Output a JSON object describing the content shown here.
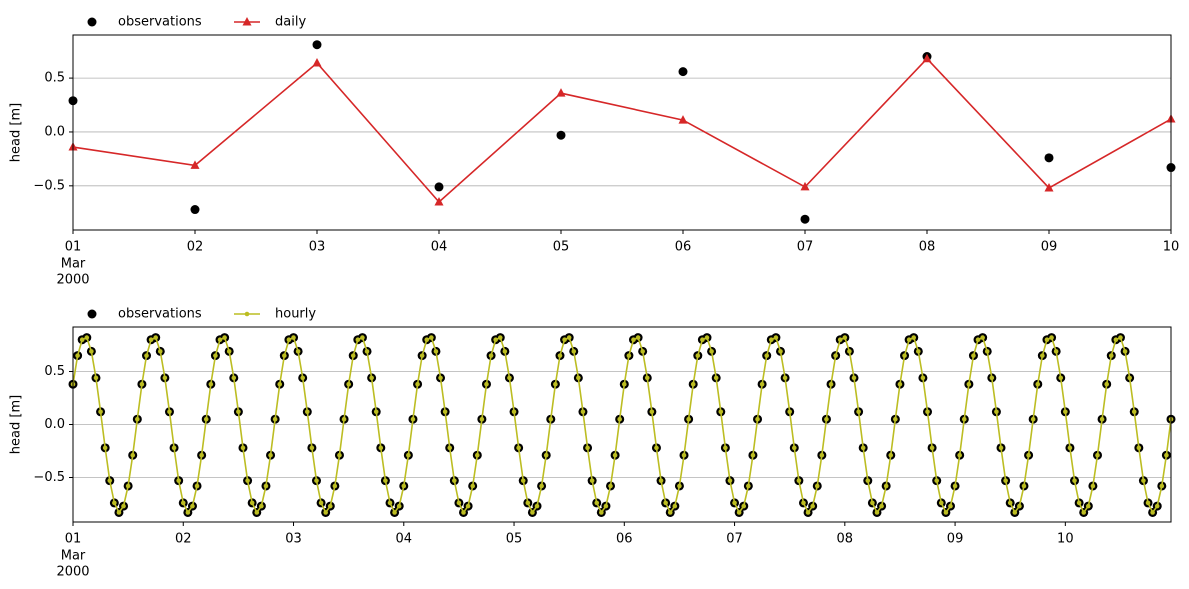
{
  "chart_data": [
    {
      "type": "line",
      "ylabel": "head [m]",
      "legend": "upper-left-outside",
      "grid": "y",
      "xlim": [
        0,
        9
      ],
      "xticks": [
        {
          "value": 0,
          "label": "01"
        },
        {
          "value": 1,
          "label": "02"
        },
        {
          "value": 2,
          "label": "03"
        },
        {
          "value": 3,
          "label": "04"
        },
        {
          "value": 4,
          "label": "05"
        },
        {
          "value": 5,
          "label": "06"
        },
        {
          "value": 6,
          "label": "07"
        },
        {
          "value": 7,
          "label": "08"
        },
        {
          "value": 8,
          "label": "09"
        },
        {
          "value": 9,
          "label": "10"
        }
      ],
      "xtick_sublabels": [
        "Mar",
        "2000"
      ],
      "ylim": [
        -0.91,
        0.9
      ],
      "yticks": [
        {
          "value": -0.5,
          "label": "−0.5"
        },
        {
          "value": 0,
          "label": "0.0"
        },
        {
          "value": 0.5,
          "label": "0.5"
        }
      ],
      "series": [
        {
          "name": "observations",
          "color": "#000000",
          "marker": "circle",
          "line": false,
          "values": [
            0.29,
            -0.72,
            0.81,
            -0.51,
            -0.03,
            0.56,
            -0.81,
            0.7,
            -0.24,
            -0.33
          ]
        },
        {
          "name": "daily",
          "color": "#d62728",
          "marker": "triangle",
          "line": true,
          "values": [
            -0.14,
            -0.31,
            0.64,
            -0.65,
            0.36,
            0.11,
            -0.51,
            0.68,
            -0.52,
            0.12
          ]
        }
      ]
    },
    {
      "type": "line",
      "ylabel": "head [m]",
      "legend": "upper-left-outside",
      "grid": "y",
      "xlim": [
        0,
        239
      ],
      "xticks": [
        {
          "value": 0,
          "label": "01"
        },
        {
          "value": 24,
          "label": "02"
        },
        {
          "value": 48,
          "label": "03"
        },
        {
          "value": 72,
          "label": "04"
        },
        {
          "value": 96,
          "label": "05"
        },
        {
          "value": 120,
          "label": "06"
        },
        {
          "value": 144,
          "label": "07"
        },
        {
          "value": 168,
          "label": "08"
        },
        {
          "value": 192,
          "label": "09"
        },
        {
          "value": 216,
          "label": "10"
        }
      ],
      "xtick_sublabels": [
        "Mar",
        "2000"
      ],
      "ylim": [
        -0.92,
        0.92
      ],
      "yticks": [
        {
          "value": -0.5,
          "label": "−0.5"
        },
        {
          "value": 0,
          "label": "0.0"
        },
        {
          "value": 0.5,
          "label": "0.5"
        }
      ],
      "series": [
        {
          "name": "observations",
          "color": "#000000",
          "marker": "circle",
          "line": false,
          "values": [
            0.38,
            0.65,
            0.8,
            0.82,
            0.69,
            0.44,
            0.12,
            -0.22,
            -0.53,
            -0.74,
            -0.83,
            -0.77,
            -0.58,
            -0.29,
            0.05,
            0.38,
            0.65,
            0.8,
            0.82,
            0.69,
            0.44,
            0.12,
            -0.22,
            -0.53,
            -0.74,
            -0.83,
            -0.77,
            -0.58,
            -0.29,
            0.05,
            0.38,
            0.65,
            0.8,
            0.82,
            0.69,
            0.44,
            0.12,
            -0.22,
            -0.53,
            -0.74,
            -0.83,
            -0.77,
            -0.58,
            -0.29,
            0.05,
            0.38,
            0.65,
            0.8,
            0.82,
            0.69,
            0.44,
            0.12,
            -0.22,
            -0.53,
            -0.74,
            -0.83,
            -0.77,
            -0.58,
            -0.29,
            0.05,
            0.38,
            0.65,
            0.8,
            0.82,
            0.69,
            0.44,
            0.12,
            -0.22,
            -0.53,
            -0.74,
            -0.83,
            -0.77,
            -0.58,
            -0.29,
            0.05,
            0.38,
            0.65,
            0.8,
            0.82,
            0.69,
            0.44,
            0.12,
            -0.22,
            -0.53,
            -0.74,
            -0.83,
            -0.77,
            -0.58,
            -0.29,
            0.05,
            0.38,
            0.65,
            0.8,
            0.82,
            0.69,
            0.44,
            0.12,
            -0.22,
            -0.53,
            -0.74,
            -0.83,
            -0.77,
            -0.58,
            -0.29,
            0.05,
            0.38,
            0.65,
            0.8,
            0.82,
            0.69,
            0.44,
            0.12,
            -0.22,
            -0.53,
            -0.74,
            -0.83,
            -0.77,
            -0.58,
            -0.29,
            0.05,
            0.38,
            0.65,
            0.8,
            0.82,
            0.69,
            0.44,
            0.12,
            -0.22,
            -0.53,
            -0.74,
            -0.83,
            -0.77,
            -0.58,
            -0.29,
            0.05,
            0.38,
            0.65,
            0.8,
            0.82,
            0.69,
            0.44,
            0.12,
            -0.22,
            -0.53,
            -0.74,
            -0.83,
            -0.77,
            -0.58,
            -0.29,
            0.05,
            0.38,
            0.65,
            0.8,
            0.82,
            0.69,
            0.44,
            0.12,
            -0.22,
            -0.53,
            -0.74,
            -0.83,
            -0.77,
            -0.58,
            -0.29,
            0.05,
            0.38,
            0.65,
            0.8,
            0.82,
            0.69,
            0.44,
            0.12,
            -0.22,
            -0.53,
            -0.74,
            -0.83,
            -0.77,
            -0.58,
            -0.29,
            0.05,
            0.38,
            0.65,
            0.8,
            0.82,
            0.69,
            0.44,
            0.12,
            -0.22,
            -0.53,
            -0.74,
            -0.83,
            -0.77,
            -0.58,
            -0.29,
            0.05,
            0.38,
            0.65,
            0.8,
            0.82,
            0.69,
            0.44,
            0.12,
            -0.22,
            -0.53,
            -0.74,
            -0.83,
            -0.77,
            -0.58,
            -0.29,
            0.05,
            0.38,
            0.65,
            0.8,
            0.82,
            0.69,
            0.44,
            0.12,
            -0.22,
            -0.53,
            -0.74,
            -0.83,
            -0.77,
            -0.58,
            -0.29,
            0.05,
            0.38,
            0.65,
            0.8,
            0.82,
            0.69,
            0.44,
            0.12,
            -0.22,
            -0.53,
            -0.74,
            -0.83,
            -0.77,
            -0.58,
            -0.29,
            0.05
          ]
        },
        {
          "name": "hourly",
          "color": "#bcbd22",
          "marker": "dot",
          "line": true,
          "values": [
            0.38,
            0.65,
            0.8,
            0.82,
            0.69,
            0.44,
            0.12,
            -0.22,
            -0.53,
            -0.74,
            -0.83,
            -0.77,
            -0.58,
            -0.29,
            0.05,
            0.38,
            0.65,
            0.8,
            0.82,
            0.69,
            0.44,
            0.12,
            -0.22,
            -0.53,
            -0.74,
            -0.83,
            -0.77,
            -0.58,
            -0.29,
            0.05,
            0.38,
            0.65,
            0.8,
            0.82,
            0.69,
            0.44,
            0.12,
            -0.22,
            -0.53,
            -0.74,
            -0.83,
            -0.77,
            -0.58,
            -0.29,
            0.05,
            0.38,
            0.65,
            0.8,
            0.82,
            0.69,
            0.44,
            0.12,
            -0.22,
            -0.53,
            -0.74,
            -0.83,
            -0.77,
            -0.58,
            -0.29,
            0.05,
            0.38,
            0.65,
            0.8,
            0.82,
            0.69,
            0.44,
            0.12,
            -0.22,
            -0.53,
            -0.74,
            -0.83,
            -0.77,
            -0.58,
            -0.29,
            0.05,
            0.38,
            0.65,
            0.8,
            0.82,
            0.69,
            0.44,
            0.12,
            -0.22,
            -0.53,
            -0.74,
            -0.83,
            -0.77,
            -0.58,
            -0.29,
            0.05,
            0.38,
            0.65,
            0.8,
            0.82,
            0.69,
            0.44,
            0.12,
            -0.22,
            -0.53,
            -0.74,
            -0.83,
            -0.77,
            -0.58,
            -0.29,
            0.05,
            0.38,
            0.65,
            0.8,
            0.82,
            0.69,
            0.44,
            0.12,
            -0.22,
            -0.53,
            -0.74,
            -0.83,
            -0.77,
            -0.58,
            -0.29,
            0.05,
            0.38,
            0.65,
            0.8,
            0.82,
            0.69,
            0.44,
            0.12,
            -0.22,
            -0.53,
            -0.74,
            -0.83,
            -0.77,
            -0.58,
            -0.29,
            0.05,
            0.38,
            0.65,
            0.8,
            0.82,
            0.69,
            0.44,
            0.12,
            -0.22,
            -0.53,
            -0.74,
            -0.83,
            -0.77,
            -0.58,
            -0.29,
            0.05,
            0.38,
            0.65,
            0.8,
            0.82,
            0.69,
            0.44,
            0.12,
            -0.22,
            -0.53,
            -0.74,
            -0.83,
            -0.77,
            -0.58,
            -0.29,
            0.05,
            0.38,
            0.65,
            0.8,
            0.82,
            0.69,
            0.44,
            0.12,
            -0.22,
            -0.53,
            -0.74,
            -0.83,
            -0.77,
            -0.58,
            -0.29,
            0.05,
            0.38,
            0.65,
            0.8,
            0.82,
            0.69,
            0.44,
            0.12,
            -0.22,
            -0.53,
            -0.74,
            -0.83,
            -0.77,
            -0.58,
            -0.29,
            0.05,
            0.38,
            0.65,
            0.8,
            0.82,
            0.69,
            0.44,
            0.12,
            -0.22,
            -0.53,
            -0.74,
            -0.83,
            -0.77,
            -0.58,
            -0.29,
            0.05,
            0.38,
            0.65,
            0.8,
            0.82,
            0.69,
            0.44,
            0.12,
            -0.22,
            -0.53,
            -0.74,
            -0.83,
            -0.77,
            -0.58,
            -0.29,
            0.05,
            0.38,
            0.65,
            0.8,
            0.82,
            0.69,
            0.44,
            0.12,
            -0.22,
            -0.53,
            -0.74,
            -0.83,
            -0.77,
            -0.58,
            -0.29,
            0.05
          ]
        }
      ]
    }
  ]
}
